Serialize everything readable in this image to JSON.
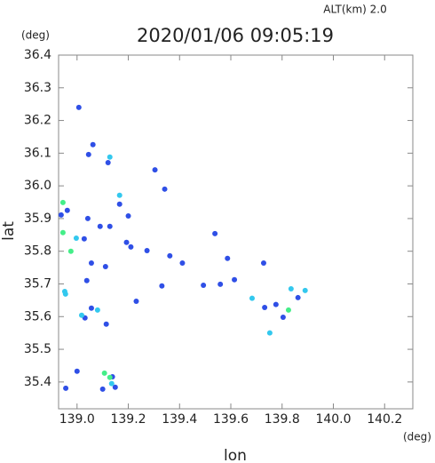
{
  "chart_data": {
    "type": "scatter",
    "title": "2020/01/06 09:05:19",
    "subtitle": "ALT(km) 2.0",
    "x_label": "lon",
    "y_label": "lat",
    "x_unit": "(deg)",
    "y_unit": "(deg)",
    "xlim": [
      138.928,
      140.31
    ],
    "ylim": [
      35.318,
      36.4
    ],
    "xticks": [
      {
        "value": 139,
        "label": "139.0"
      },
      139.2,
      139.4,
      139.6,
      139.8,
      {
        "value": 140,
        "label": "140.0"
      },
      140.2
    ],
    "yticks": [
      35.4,
      35.5,
      35.6,
      35.7,
      35.8,
      35.9,
      {
        "value": 36,
        "label": "36.0"
      },
      36.1,
      36.2,
      36.3,
      36.4
    ],
    "series": [
      {
        "color": "#2f4fe6",
        "x": [
          139.007,
          139.062,
          139.045,
          139.121,
          138.938,
          138.962,
          139.042,
          139.028,
          139.09,
          139.056,
          139.038,
          139.031,
          139.056,
          139.114,
          139.138,
          139.149,
          139.1,
          138.956,
          139.166,
          139.128,
          139.2,
          139.193,
          139.21,
          139.111,
          139.273,
          139.304,
          139.342,
          139.362,
          139.411,
          139.493,
          139.538,
          139.587,
          139.614,
          139.559,
          139.728,
          139.732,
          139.776,
          139.862,
          139.804,
          139.331,
          139.231,
          139.0
        ],
        "y": [
          36.24,
          36.126,
          36.096,
          36.071,
          35.911,
          35.925,
          35.9,
          35.838,
          35.876,
          35.764,
          35.71,
          35.596,
          35.626,
          35.577,
          35.416,
          35.384,
          35.378,
          35.381,
          35.944,
          35.876,
          35.908,
          35.827,
          35.813,
          35.753,
          35.802,
          36.049,
          35.99,
          35.786,
          35.764,
          35.696,
          35.854,
          35.778,
          35.713,
          35.699,
          35.764,
          35.628,
          35.637,
          35.658,
          35.598,
          35.694,
          35.647,
          35.433
        ]
      },
      {
        "color": "#33c8ee",
        "x": [
          139.128,
          138.997,
          138.952,
          138.955,
          139.018,
          139.08,
          139.135,
          139.166,
          139.683,
          139.752,
          139.835,
          139.89
        ],
        "y": [
          36.088,
          35.84,
          35.677,
          35.669,
          35.604,
          35.62,
          35.395,
          35.971,
          35.656,
          35.55,
          35.685,
          35.68
        ]
      },
      {
        "color": "#44ee88",
        "x": [
          138.945,
          138.945,
          138.976,
          139.107,
          139.128,
          139.825
        ],
        "y": [
          35.949,
          35.857,
          35.8,
          35.427,
          35.414,
          35.62
        ]
      }
    ]
  }
}
